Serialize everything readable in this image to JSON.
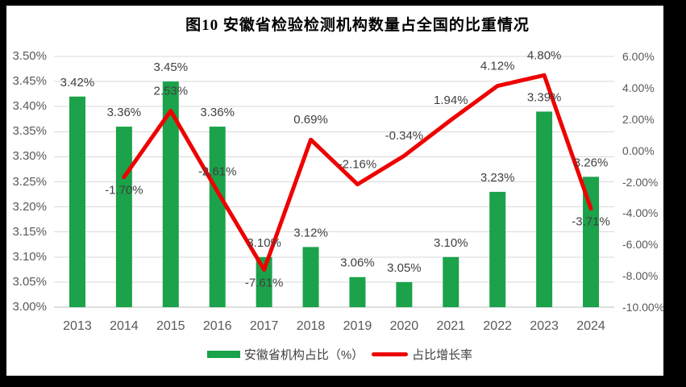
{
  "title": "图10 安徽省检验检测机构数量占全国的比重情况",
  "colors": {
    "bar": "#1BA24A",
    "line": "#EE0101",
    "gridline": "#D9D9D9",
    "axis_line": "#BFBFBF",
    "axis_text": "#595959",
    "data_label": "#404040",
    "title_text": "#000000",
    "legend_text": "#404040",
    "plot_bg": "#FFFFFF",
    "outer_border": "#000000"
  },
  "legend": {
    "items": [
      {
        "label": "安徽省机构占比（%）",
        "swatch": "bar-swatch-icon"
      },
      {
        "label": "占比增长率",
        "swatch": "line-swatch-icon"
      }
    ]
  },
  "chart_data": {
    "type": "bar+line combo",
    "title": "图10 安徽省检验检测机构数量占全国的比重情况",
    "categories": [
      "2013",
      "2014",
      "2015",
      "2016",
      "2017",
      "2018",
      "2019",
      "2020",
      "2021",
      "2022",
      "2023",
      "2024"
    ],
    "series": [
      {
        "name": "安徽省机构占比（%）",
        "type": "bar",
        "axis": "left",
        "values": [
          3.42,
          3.36,
          3.45,
          3.36,
          3.1,
          3.12,
          3.06,
          3.05,
          3.1,
          3.23,
          3.39,
          3.26
        ],
        "labels": [
          "3.42%",
          "3.36%",
          "3.45%",
          "3.36%",
          "3.10%",
          "3.12%",
          "3.06%",
          "3.05%",
          "3.10%",
          "3.23%",
          "3.39%",
          "3.26%"
        ]
      },
      {
        "name": "占比增长率",
        "type": "line",
        "axis": "right",
        "values": [
          null,
          -1.7,
          2.53,
          -2.61,
          -7.61,
          0.69,
          -2.16,
          -0.34,
          1.94,
          4.12,
          4.8,
          -3.71
        ],
        "labels": [
          null,
          "-1.70%",
          "2.53%",
          "-2.61%",
          "-7.61%",
          "0.69%",
          "-2.16%",
          "-0.34%",
          "1.94%",
          "4.12%",
          "4.80%",
          "-3.71%"
        ],
        "label_pos": [
          null,
          "below",
          "above",
          "above",
          "below",
          "above",
          "above",
          "above",
          "above",
          "above",
          "above",
          "below"
        ]
      }
    ],
    "left_axis": {
      "min": 3.0,
      "max": 3.5,
      "step": 0.05,
      "ticks": [
        "3.50%",
        "3.45%",
        "3.40%",
        "3.35%",
        "3.30%",
        "3.25%",
        "3.20%",
        "3.15%",
        "3.10%",
        "3.05%",
        "3.00%"
      ]
    },
    "right_axis": {
      "min": -10.0,
      "max": 6.0,
      "step": 2.0,
      "ticks": [
        "6.00%",
        "4.00%",
        "2.00%",
        "0.00%",
        "-2.00%",
        "-4.00%",
        "-6.00%",
        "-8.00%",
        "-10.00%"
      ]
    },
    "grid": "horizontal",
    "legend_position": "bottom"
  }
}
